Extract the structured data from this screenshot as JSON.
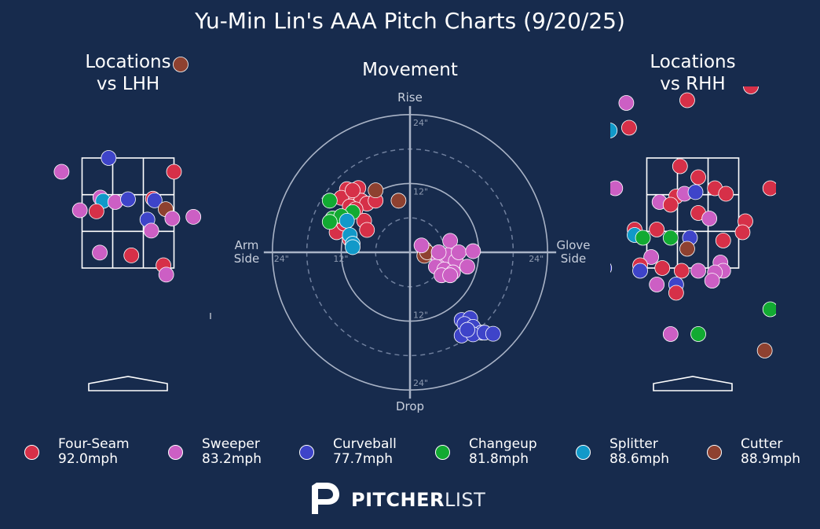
{
  "title": "Yu-Min Lin's AAA Pitch Charts (9/20/25)",
  "panels": {
    "left_title": "Locations\nvs LHH",
    "movement_title": "Movement",
    "right_title": "Locations\nvs RHH"
  },
  "movement_labels": {
    "top": "Rise",
    "bottom": "Drop",
    "left": "Arm\nSide",
    "right": "Glove\nSide",
    "ring_12": "12\"",
    "ring_24": "24\""
  },
  "colors": {
    "background": "#172b4d",
    "Four-Seam": "#d63048",
    "Sweeper": "#cc5fc4",
    "Curveball": "#3e44c9",
    "Changeup": "#12aa32",
    "Splitter": "#1199c9",
    "Cutter": "#8e4130"
  },
  "legend": [
    {
      "pitch": "Four-Seam",
      "speed": "92.0mph"
    },
    {
      "pitch": "Sweeper",
      "speed": "83.2mph"
    },
    {
      "pitch": "Curveball",
      "speed": "77.7mph"
    },
    {
      "pitch": "Changeup",
      "speed": "81.8mph"
    },
    {
      "pitch": "Splitter",
      "speed": "88.6mph"
    },
    {
      "pitch": "Cutter",
      "speed": "88.9mph"
    }
  ],
  "brand": {
    "bold": "PITCHER",
    "light": "LIST"
  },
  "chart_data": [
    {
      "type": "scatter",
      "title": "Locations vs LHH",
      "xlabel": "",
      "ylabel": "",
      "xlim": [
        -3.4,
        3.0
      ],
      "ylim": [
        -0.3,
        6.0
      ],
      "strike_zone": {
        "x": [
          -0.83,
          0.83
        ],
        "y": [
          1.5,
          3.5
        ]
      },
      "grid": "3x3 zone",
      "points": [
        {
          "pitch": "Cutter",
          "x": 0.95,
          "y": 5.2
        },
        {
          "pitch": "Curveball",
          "x": -0.35,
          "y": 3.5
        },
        {
          "pitch": "Sweeper",
          "x": -1.2,
          "y": 3.25
        },
        {
          "pitch": "Four-Seam",
          "x": 0.83,
          "y": 3.25
        },
        {
          "pitch": "Sweeper",
          "x": -0.5,
          "y": 2.78
        },
        {
          "pitch": "Splitter",
          "x": -0.45,
          "y": 2.72
        },
        {
          "pitch": "Sweeper",
          "x": -0.23,
          "y": 2.7
        },
        {
          "pitch": "Curveball",
          "x": 0.0,
          "y": 2.75
        },
        {
          "pitch": "Four-Seam",
          "x": 0.45,
          "y": 2.76
        },
        {
          "pitch": "Curveball",
          "x": 0.48,
          "y": 2.73
        },
        {
          "pitch": "Cutter",
          "x": 0.68,
          "y": 2.57
        },
        {
          "pitch": "Sweeper",
          "x": -0.87,
          "y": 2.55
        },
        {
          "pitch": "Four-Seam",
          "x": -0.57,
          "y": 2.53
        },
        {
          "pitch": "Sweeper",
          "x": 1.18,
          "y": 2.43
        },
        {
          "pitch": "Sweeper",
          "x": 0.8,
          "y": 2.4
        },
        {
          "pitch": "Curveball",
          "x": 0.35,
          "y": 2.38
        },
        {
          "pitch": "Sweeper",
          "x": 0.42,
          "y": 2.18
        },
        {
          "pitch": "Sweeper",
          "x": -0.51,
          "y": 1.78
        },
        {
          "pitch": "Four-Seam",
          "x": 0.06,
          "y": 1.73
        },
        {
          "pitch": "Four-Seam",
          "x": 0.64,
          "y": 1.55
        },
        {
          "pitch": "Sweeper",
          "x": 0.69,
          "y": 1.38
        }
      ]
    },
    {
      "type": "scatter",
      "title": "Movement",
      "xlabel": "Arm Side / Glove Side",
      "ylabel": "Drop / Rise",
      "xlim": [
        -24,
        24
      ],
      "ylim": [
        -24,
        24
      ],
      "rings": [
        12,
        24
      ],
      "dashed_rings": [
        6,
        18
      ],
      "points": [
        {
          "pitch": "Four-Seam",
          "x": -11.0,
          "y": 11.0
        },
        {
          "pitch": "Four-Seam",
          "x": -10.0,
          "y": 10.5
        },
        {
          "pitch": "Four-Seam",
          "x": -9.0,
          "y": 11.2
        },
        {
          "pitch": "Four-Seam",
          "x": -12.0,
          "y": 9.5
        },
        {
          "pitch": "Four-Seam",
          "x": -8.5,
          "y": 9.0
        },
        {
          "pitch": "Four-Seam",
          "x": -7.5,
          "y": 8.5
        },
        {
          "pitch": "Four-Seam",
          "x": -6.0,
          "y": 9.0
        },
        {
          "pitch": "Four-Seam",
          "x": -10.5,
          "y": 8.0
        },
        {
          "pitch": "Four-Seam",
          "x": -9.5,
          "y": 7.5
        },
        {
          "pitch": "Four-Seam",
          "x": -8.0,
          "y": 5.5
        },
        {
          "pitch": "Four-Seam",
          "x": -7.5,
          "y": 3.9
        },
        {
          "pitch": "Four-Seam",
          "x": -12.8,
          "y": 3.5
        },
        {
          "pitch": "Four-Seam",
          "x": -10.5,
          "y": 2.3
        },
        {
          "pitch": "Four-Seam",
          "x": -11.5,
          "y": 5.0
        },
        {
          "pitch": "Four-Seam",
          "x": -10.0,
          "y": 10.8
        },
        {
          "pitch": "Cutter",
          "x": -6.0,
          "y": 10.8
        },
        {
          "pitch": "Cutter",
          "x": -2.0,
          "y": 9.0
        },
        {
          "pitch": "Changeup",
          "x": -14.0,
          "y": 9.0
        },
        {
          "pitch": "Changeup",
          "x": -10.0,
          "y": 7.0
        },
        {
          "pitch": "Changeup",
          "x": -13.5,
          "y": 5.9
        },
        {
          "pitch": "Changeup",
          "x": -12.0,
          "y": 6.3
        },
        {
          "pitch": "Changeup",
          "x": -14.0,
          "y": 5.3
        },
        {
          "pitch": "Splitter",
          "x": -11.0,
          "y": 5.5
        },
        {
          "pitch": "Splitter",
          "x": -10.5,
          "y": 3.0
        },
        {
          "pitch": "Splitter",
          "x": -10.0,
          "y": 1.5
        },
        {
          "pitch": "Splitter",
          "x": -10.0,
          "y": 0.9
        },
        {
          "pitch": "Cutter",
          "x": 2.5,
          "y": 0.6
        },
        {
          "pitch": "Cutter",
          "x": 2.5,
          "y": -0.6
        },
        {
          "pitch": "Cutter",
          "x": 3.0,
          "y": 0.0
        },
        {
          "pitch": "Sweeper",
          "x": 2.0,
          "y": 1.2
        },
        {
          "pitch": "Sweeper",
          "x": 7.0,
          "y": 2.0
        },
        {
          "pitch": "Sweeper",
          "x": 5.0,
          "y": -1.0
        },
        {
          "pitch": "Sweeper",
          "x": 6.5,
          "y": -0.5
        },
        {
          "pitch": "Sweeper",
          "x": 8.0,
          "y": -1.5
        },
        {
          "pitch": "Sweeper",
          "x": 4.5,
          "y": -2.5
        },
        {
          "pitch": "Sweeper",
          "x": 6.0,
          "y": -3.0
        },
        {
          "pitch": "Sweeper",
          "x": 7.5,
          "y": -3.5
        },
        {
          "pitch": "Sweeper",
          "x": 5.5,
          "y": -4.0
        },
        {
          "pitch": "Sweeper",
          "x": 8.5,
          "y": 0.0
        },
        {
          "pitch": "Sweeper",
          "x": 10.0,
          "y": -2.5
        },
        {
          "pitch": "Sweeper",
          "x": 11.0,
          "y": 0.2
        },
        {
          "pitch": "Sweeper",
          "x": 7.0,
          "y": -4.0
        },
        {
          "pitch": "Sweeper",
          "x": 5.0,
          "y": 0.0
        },
        {
          "pitch": "Curveball",
          "x": 9.0,
          "y": -11.8
        },
        {
          "pitch": "Curveball",
          "x": 10.5,
          "y": -11.5
        },
        {
          "pitch": "Curveball",
          "x": 9.5,
          "y": -12.5
        },
        {
          "pitch": "Curveball",
          "x": 11.0,
          "y": -13.0
        },
        {
          "pitch": "Curveball",
          "x": 12.5,
          "y": -14.0
        },
        {
          "pitch": "Curveball",
          "x": 9.0,
          "y": -14.5
        },
        {
          "pitch": "Curveball",
          "x": 11.0,
          "y": -14.3
        },
        {
          "pitch": "Curveball",
          "x": 13.0,
          "y": -14.0
        },
        {
          "pitch": "Curveball",
          "x": 14.5,
          "y": -14.2
        },
        {
          "pitch": "Curveball",
          "x": 10.0,
          "y": -13.5
        }
      ]
    },
    {
      "type": "scatter",
      "title": "Locations vs RHH",
      "xlabel": "",
      "ylabel": "",
      "xlim": [
        -3.4,
        3.0
      ],
      "ylim": [
        -0.3,
        6.0
      ],
      "strike_zone": {
        "x": [
          -0.83,
          0.83
        ],
        "y": [
          1.5,
          3.5
        ]
      },
      "grid": "3x3 zone",
      "points": [
        {
          "pitch": "Cutter",
          "x": 0.6,
          "y": 5.3
        },
        {
          "pitch": "Four-Seam",
          "x": 1.05,
          "y": 4.8
        },
        {
          "pitch": "Sweeper",
          "x": -1.2,
          "y": 4.5
        },
        {
          "pitch": "Four-Seam",
          "x": -0.1,
          "y": 4.55
        },
        {
          "pitch": "Four-Seam",
          "x": -1.15,
          "y": 4.05
        },
        {
          "pitch": "Splitter",
          "x": -1.5,
          "y": 4.0
        },
        {
          "pitch": "Four-Seam",
          "x": -0.23,
          "y": 3.35
        },
        {
          "pitch": "Four-Seam",
          "x": 0.1,
          "y": 3.15
        },
        {
          "pitch": "Four-Seam",
          "x": 0.4,
          "y": 2.95
        },
        {
          "pitch": "Four-Seam",
          "x": 0.6,
          "y": 2.85
        },
        {
          "pitch": "Sweeper",
          "x": -1.4,
          "y": 2.95
        },
        {
          "pitch": "Four-Seam",
          "x": 1.4,
          "y": 2.95
        },
        {
          "pitch": "Four-Seam",
          "x": -0.3,
          "y": 2.8
        },
        {
          "pitch": "Sweeper",
          "x": -0.6,
          "y": 2.7
        },
        {
          "pitch": "Four-Seam",
          "x": -0.4,
          "y": 2.65
        },
        {
          "pitch": "Sweeper",
          "x": -0.15,
          "y": 2.85
        },
        {
          "pitch": "Curveball",
          "x": 0.05,
          "y": 2.88
        },
        {
          "pitch": "Four-Seam",
          "x": 0.1,
          "y": 2.5
        },
        {
          "pitch": "Sweeper",
          "x": 0.3,
          "y": 2.4
        },
        {
          "pitch": "Four-Seam",
          "x": 0.95,
          "y": 2.35
        },
        {
          "pitch": "Four-Seam",
          "x": -1.05,
          "y": 2.2
        },
        {
          "pitch": "Four-Seam",
          "x": -0.65,
          "y": 2.2
        },
        {
          "pitch": "Splitter",
          "x": -1.05,
          "y": 2.1
        },
        {
          "pitch": "Four-Seam",
          "x": 0.9,
          "y": 2.15
        },
        {
          "pitch": "Changeup",
          "x": -0.9,
          "y": 2.05
        },
        {
          "pitch": "Changeup",
          "x": -0.4,
          "y": 2.05
        },
        {
          "pitch": "Curveball",
          "x": -0.05,
          "y": 2.05
        },
        {
          "pitch": "Four-Seam",
          "x": 0.55,
          "y": 2.0
        },
        {
          "pitch": "Cutter",
          "x": -0.1,
          "y": 1.85
        },
        {
          "pitch": "Sweeper",
          "x": -0.75,
          "y": 1.7
        },
        {
          "pitch": "Four-Seam",
          "x": -0.95,
          "y": 1.55
        },
        {
          "pitch": "Four-Seam",
          "x": -0.55,
          "y": 1.5
        },
        {
          "pitch": "Four-Seam",
          "x": -0.2,
          "y": 1.45
        },
        {
          "pitch": "Sweeper",
          "x": 0.1,
          "y": 1.45
        },
        {
          "pitch": "Sweeper",
          "x": 0.5,
          "y": 1.6
        },
        {
          "pitch": "Sweeper",
          "x": 0.55,
          "y": 1.45
        },
        {
          "pitch": "Sweeper",
          "x": 0.4,
          "y": 1.42
        },
        {
          "pitch": "Curveball",
          "x": -1.6,
          "y": 1.5
        },
        {
          "pitch": "Curveball",
          "x": -0.95,
          "y": 1.45
        },
        {
          "pitch": "Curveball",
          "x": -0.3,
          "y": 1.2
        },
        {
          "pitch": "Sweeper",
          "x": 0.35,
          "y": 1.27
        },
        {
          "pitch": "Sweeper",
          "x": -0.65,
          "y": 1.2
        },
        {
          "pitch": "Four-Seam",
          "x": -0.3,
          "y": 1.05
        },
        {
          "pitch": "Changeup",
          "x": 1.4,
          "y": 0.75
        },
        {
          "pitch": "Sweeper",
          "x": -0.4,
          "y": 0.3
        },
        {
          "pitch": "Changeup",
          "x": 0.1,
          "y": 0.3
        },
        {
          "pitch": "Cutter",
          "x": 1.3,
          "y": 0.0
        }
      ]
    }
  ]
}
